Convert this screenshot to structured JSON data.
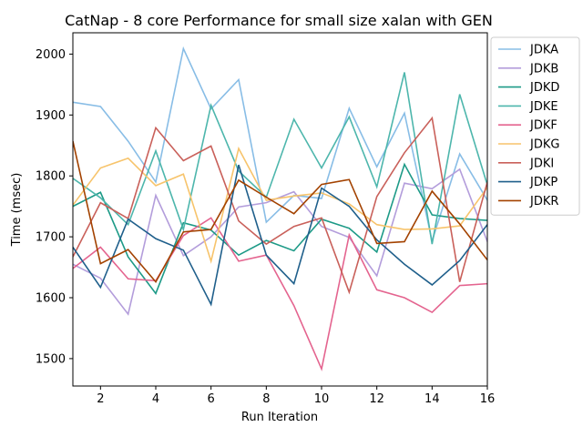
{
  "chart_data": {
    "type": "line",
    "title": "CatNap - 8 core Performance for small size xalan with GEN",
    "xlabel": "Run Iteration",
    "ylabel": "Time (msec)",
    "xlim": [
      1,
      16
    ],
    "ylim": [
      1455,
      2035
    ],
    "x_ticks": [
      2,
      4,
      6,
      8,
      10,
      12,
      14,
      16
    ],
    "y_ticks": [
      1500,
      1600,
      1700,
      1800,
      1900,
      2000
    ],
    "legend_position": "outside-right",
    "grid": false,
    "x": [
      1,
      2,
      3,
      4,
      5,
      6,
      7,
      8,
      9,
      10,
      11,
      12,
      13,
      14,
      15,
      16
    ],
    "series": [
      {
        "name": "JDKA",
        "color": "#88bde6",
        "values": [
          1921,
          1914,
          1857,
          1790,
          2009,
          1910,
          1958,
          1724,
          1768,
          1763,
          1911,
          1815,
          1903,
          1693,
          1836,
          1760
        ]
      },
      {
        "name": "JDKB",
        "color": "#b39ddb",
        "values": [
          1655,
          1632,
          1573,
          1768,
          1669,
          1700,
          1749,
          1756,
          1774,
          1717,
          1699,
          1636,
          1788,
          1779,
          1811,
          1692
        ]
      },
      {
        "name": "JDKD",
        "color": "#1d9a87",
        "values": [
          1750,
          1773,
          1667,
          1607,
          1723,
          1711,
          1670,
          1694,
          1677,
          1729,
          1714,
          1675,
          1819,
          1736,
          1730,
          1727
        ]
      },
      {
        "name": "JDKE",
        "color": "#4db6ac",
        "values": [
          1796,
          1764,
          1720,
          1841,
          1712,
          1916,
          1808,
          1765,
          1893,
          1813,
          1897,
          1782,
          1970,
          1688,
          1934,
          1785
        ]
      },
      {
        "name": "JDKF",
        "color": "#e4648f",
        "values": [
          1648,
          1683,
          1631,
          1628,
          1702,
          1731,
          1660,
          1670,
          1587,
          1483,
          1703,
          1613,
          1600,
          1576,
          1620,
          1623
        ]
      },
      {
        "name": "JDKG",
        "color": "#f7c46c",
        "values": [
          1752,
          1813,
          1829,
          1784,
          1803,
          1660,
          1845,
          1760,
          1767,
          1772,
          1754,
          1720,
          1712,
          1713,
          1718,
          1781
        ]
      },
      {
        "name": "JDKI",
        "color": "#c9605a",
        "values": [
          1667,
          1756,
          1730,
          1879,
          1825,
          1849,
          1726,
          1688,
          1717,
          1731,
          1609,
          1766,
          1838,
          1895,
          1626,
          1790
        ]
      },
      {
        "name": "JDKP",
        "color": "#1f5f8b",
        "values": [
          1683,
          1617,
          1729,
          1697,
          1678,
          1589,
          1818,
          1670,
          1623,
          1780,
          1750,
          1695,
          1655,
          1621,
          1661,
          1720
        ]
      },
      {
        "name": "JDKR",
        "color": "#a34200",
        "values": [
          1857,
          1656,
          1679,
          1626,
          1708,
          1712,
          1793,
          1765,
          1738,
          1786,
          1794,
          1689,
          1692,
          1775,
          1721,
          1662
        ]
      }
    ]
  }
}
